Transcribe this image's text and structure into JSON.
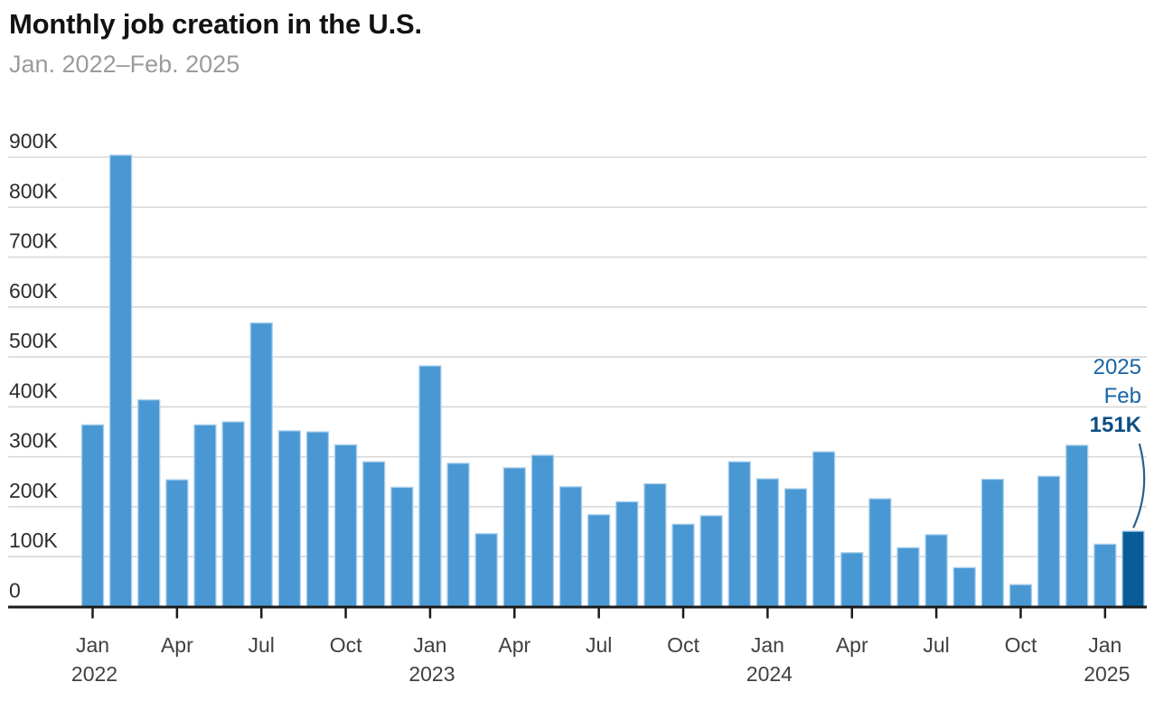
{
  "header": {
    "title": "Monthly job creation in the U.S.",
    "subtitle": "Jan. 2022–Feb. 2025"
  },
  "chart_data": {
    "type": "bar",
    "title": "Monthly job creation in the U.S.",
    "subtitle": "Jan. 2022–Feb. 2025",
    "unit": "thousands of jobs",
    "ylim": [
      0,
      900
    ],
    "ytick_interval": 100,
    "grid": true,
    "categories": [
      "Jan 2022",
      "Feb 2022",
      "Mar 2022",
      "Apr 2022",
      "May 2022",
      "Jun 2022",
      "Jul 2022",
      "Aug 2022",
      "Sep 2022",
      "Oct 2022",
      "Nov 2022",
      "Dec 2022",
      "Jan 2023",
      "Feb 2023",
      "Mar 2023",
      "Apr 2023",
      "May 2023",
      "Jun 2023",
      "Jul 2023",
      "Aug 2023",
      "Sep 2023",
      "Oct 2023",
      "Nov 2023",
      "Dec 2023",
      "Jan 2024",
      "Feb 2024",
      "Mar 2024",
      "Apr 2024",
      "May 2024",
      "Jun 2024",
      "Jul 2024",
      "Aug 2024",
      "Sep 2024",
      "Oct 2024",
      "Nov 2024",
      "Dec 2024",
      "Jan 2025",
      "Feb 2025"
    ],
    "values": [
      364,
      904,
      414,
      254,
      364,
      370,
      568,
      352,
      350,
      324,
      290,
      239,
      482,
      287,
      146,
      278,
      303,
      240,
      184,
      210,
      246,
      165,
      182,
      290,
      256,
      236,
      310,
      108,
      216,
      118,
      144,
      78,
      255,
      44,
      261,
      323,
      125,
      151
    ],
    "highlight_index": 37,
    "yticks": [
      {
        "value": 900,
        "label": "900K"
      },
      {
        "value": 800,
        "label": "800K"
      },
      {
        "value": 700,
        "label": "700K"
      },
      {
        "value": 600,
        "label": "600K"
      },
      {
        "value": 500,
        "label": "500K"
      },
      {
        "value": 400,
        "label": "400K"
      },
      {
        "value": 300,
        "label": "300K"
      },
      {
        "value": 200,
        "label": "200K"
      },
      {
        "value": 100,
        "label": "100K"
      },
      {
        "value": 0,
        "label": "0"
      }
    ],
    "xticks": [
      {
        "index": 0,
        "label": "Jan",
        "year": "2022"
      },
      {
        "index": 3,
        "label": "Apr"
      },
      {
        "index": 6,
        "label": "Jul"
      },
      {
        "index": 9,
        "label": "Oct"
      },
      {
        "index": 12,
        "label": "Jan",
        "year": "2023"
      },
      {
        "index": 15,
        "label": "Apr"
      },
      {
        "index": 18,
        "label": "Jul"
      },
      {
        "index": 21,
        "label": "Oct"
      },
      {
        "index": 24,
        "label": "Jan",
        "year": "2024"
      },
      {
        "index": 27,
        "label": "Apr"
      },
      {
        "index": 30,
        "label": "Jul"
      },
      {
        "index": 33,
        "label": "Oct"
      },
      {
        "index": 36,
        "label": "Jan",
        "year": "2025"
      }
    ],
    "annotation": {
      "year": "2025",
      "month": "Feb",
      "value_label": "151K",
      "target": "Feb 2025"
    },
    "legend": null,
    "colors": {
      "bar": "#4a98d3",
      "bar_highlight": "#0a5c99",
      "bar_stroke": "#abd0ec",
      "gridline": "#d8d8d8",
      "axis": "#1b1b1b",
      "ytick_text": "#2d2d2d",
      "xtick_text": "#404040",
      "annotation_text": "#1a64a4",
      "annotation_value": "#0d4e82",
      "callout": "#28608e",
      "title": "#121212",
      "subtitle": "#9b9b9b"
    }
  }
}
